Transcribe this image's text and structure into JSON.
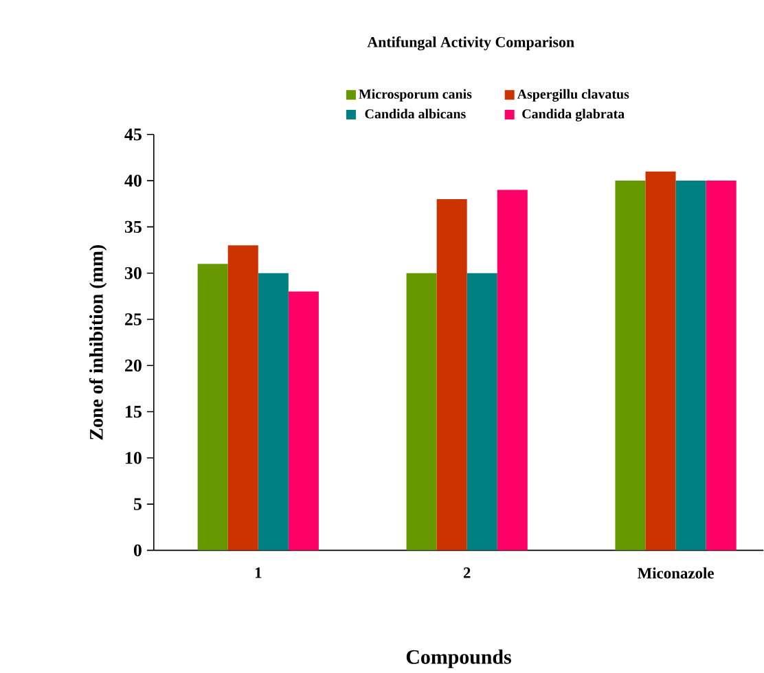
{
  "chart_data": {
    "type": "bar",
    "title": "Antifungal Activity Comparison",
    "xlabel": "Compounds",
    "ylabel": "Zone of inhibition (mm)",
    "categories": [
      "1",
      "2",
      "Miconazole"
    ],
    "series": [
      {
        "name": "Microsporum canis",
        "color": "#669900",
        "values": [
          31,
          30,
          40
        ]
      },
      {
        "name": "Aspergillu clavatus",
        "color": "#cc3300",
        "values": [
          33,
          38,
          41
        ]
      },
      {
        "name": "Candida albicans",
        "color": "#008080",
        "values": [
          30,
          30,
          40
        ]
      },
      {
        "name": "Candida glabrata",
        "color": "#ff0066",
        "values": [
          28,
          39,
          40
        ]
      }
    ],
    "ylim": [
      0,
      45
    ],
    "yticks": [
      0,
      5,
      10,
      15,
      20,
      25,
      30,
      35,
      40,
      45
    ],
    "grid": false,
    "legend": "top"
  }
}
